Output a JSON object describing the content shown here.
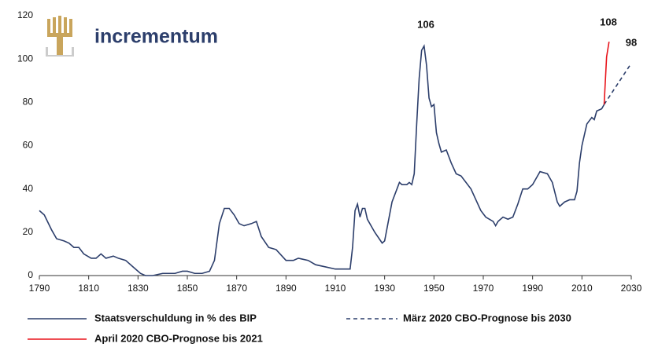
{
  "chart_data": {
    "type": "line",
    "logo": "incrementum",
    "annotations": [
      "106",
      "108",
      "98"
    ],
    "xlim": [
      1790,
      2030
    ],
    "xticks": [
      1790,
      1810,
      1830,
      1850,
      1870,
      1890,
      1910,
      1930,
      1950,
      1970,
      1990,
      2010,
      2030
    ],
    "ylim": [
      0,
      120
    ],
    "yticks": [
      0,
      20,
      40,
      60,
      80,
      100,
      120
    ],
    "series": [
      {
        "name": "Staatsverschuldung in % des BIP",
        "color": "#2c3e6b",
        "dashed": false,
        "x": [
          1790,
          1792,
          1795,
          1797,
          1800,
          1802,
          1804,
          1806,
          1808,
          1811,
          1813,
          1815,
          1817,
          1820,
          1822,
          1825,
          1828,
          1831,
          1833,
          1836,
          1840,
          1843,
          1845,
          1848,
          1850,
          1853,
          1856,
          1859,
          1861,
          1863,
          1865,
          1867,
          1869,
          1871,
          1873,
          1876,
          1878,
          1880,
          1883,
          1886,
          1890,
          1893,
          1895,
          1899,
          1902,
          1906,
          1910,
          1913,
          1916,
          1917,
          1918,
          1919,
          1920,
          1921,
          1922,
          1923,
          1926,
          1929,
          1930,
          1931,
          1933,
          1935,
          1936,
          1937,
          1939,
          1940,
          1941,
          1942,
          1943,
          1944,
          1945,
          1946,
          1947,
          1948,
          1949,
          1950,
          1951,
          1952,
          1953,
          1955,
          1957,
          1959,
          1961,
          1965,
          1967,
          1969,
          1971,
          1974,
          1975,
          1976,
          1978,
          1980,
          1982,
          1984,
          1986,
          1988,
          1990,
          1992,
          1993,
          1996,
          1998,
          2000,
          2001,
          2003,
          2005,
          2007,
          2008,
          2009,
          2010,
          2011,
          2012,
          2014,
          2015,
          2016,
          2018,
          2019
        ],
        "values": [
          30,
          28,
          21,
          17,
          16,
          15,
          13,
          13,
          10,
          8,
          8,
          10,
          8,
          9,
          8,
          7,
          4,
          1,
          0,
          0,
          1,
          1,
          1,
          2,
          2,
          1,
          1,
          2,
          7,
          24,
          31,
          31,
          28,
          24,
          23,
          24,
          25,
          18,
          13,
          12,
          7,
          7,
          8,
          7,
          5,
          4,
          3,
          3,
          3,
          13,
          30,
          33,
          27,
          31,
          31,
          26,
          20,
          15,
          16,
          22,
          34,
          40,
          43,
          42,
          42,
          43,
          42,
          47,
          70,
          91,
          104,
          106,
          97,
          82,
          78,
          79,
          66,
          61,
          57,
          58,
          52,
          47,
          46,
          40,
          35,
          30,
          27,
          25,
          23,
          25,
          27,
          26,
          27,
          33,
          40,
          40,
          42,
          46,
          48,
          47,
          43,
          34,
          32,
          34,
          35,
          35,
          39,
          52,
          60,
          65,
          70,
          73,
          72,
          76,
          77,
          79
        ]
      },
      {
        "name": "März 2020 CBO-Prognose bis 2030",
        "color": "#2c3e6b",
        "dashed": true,
        "x": [
          2019,
          2030
        ],
        "values": [
          79,
          98
        ]
      },
      {
        "name": "April 2020 CBO-Prognose bis 2021",
        "color": "#e8141b",
        "dashed": false,
        "x": [
          2019,
          2020,
          2021
        ],
        "values": [
          79,
          101,
          108
        ]
      }
    ]
  }
}
